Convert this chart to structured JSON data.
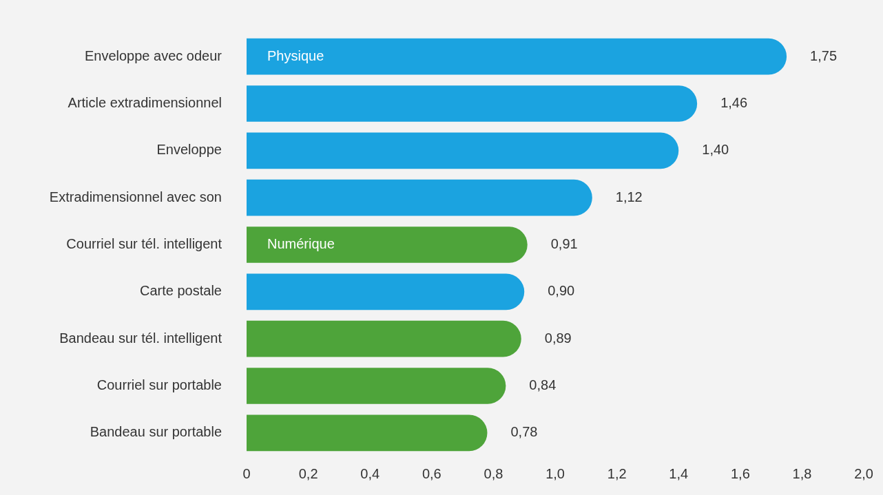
{
  "chart_data": {
    "type": "bar",
    "orientation": "horizontal",
    "categories": [
      "Enveloppe avec odeur",
      "Article extradimensionnel",
      "Enveloppe",
      "Extradimensionnel avec son",
      "Courriel sur tél. intelligent",
      "Carte postale",
      "Bandeau sur tél. intelligent",
      "Courriel sur portable",
      "Bandeau sur portable"
    ],
    "series": [
      {
        "name": "Physique",
        "color": "#1ba3e0",
        "values": [
          1.75,
          1.46,
          1.4,
          1.12,
          null,
          0.9,
          null,
          null,
          null
        ],
        "value_labels": [
          "1,75",
          "1,46",
          "1,40",
          "1,12",
          null,
          "0,90",
          null,
          null,
          null
        ]
      },
      {
        "name": "Numérique",
        "color": "#4ea43a",
        "values": [
          null,
          null,
          null,
          null,
          0.91,
          null,
          0.89,
          0.84,
          0.78
        ],
        "value_labels": [
          null,
          null,
          null,
          null,
          "0,91",
          null,
          "0,89",
          "0,84",
          "0,78"
        ]
      }
    ],
    "xlim": [
      0,
      2.0
    ],
    "xticks": [
      0,
      {
        "value": 0.2,
        "label": "0,2"
      },
      {
        "value": 0.4,
        "label": "0,4"
      },
      {
        "value": 0.6,
        "label": "0,6"
      },
      {
        "value": 0.8,
        "label": "0,8"
      },
      {
        "value": 1.0,
        "label": "1,0"
      },
      {
        "value": 1.2,
        "label": "1,2"
      },
      {
        "value": 1.4,
        "label": "1,4"
      },
      {
        "value": 1.6,
        "label": "1,6"
      },
      {
        "value": 1.8,
        "label": "1,8"
      },
      {
        "value": 2.0,
        "label": "2,0"
      }
    ],
    "grid": false,
    "legend": false
  }
}
